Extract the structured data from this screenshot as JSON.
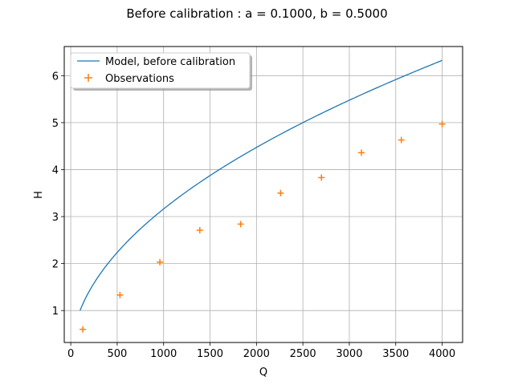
{
  "chart_data": {
    "type": "line",
    "title": "Before calibration : a = 0.1000, b = 0.5000",
    "xlabel": "Q",
    "ylabel": "H",
    "xlim": [
      -70,
      4220
    ],
    "ylim": [
      0.32,
      6.62
    ],
    "xticks": [
      0,
      500,
      1000,
      1500,
      2000,
      2500,
      3000,
      3500,
      4000
    ],
    "yticks": [
      1,
      2,
      3,
      4,
      5,
      6
    ],
    "grid": true,
    "legend": {
      "placement": "top-left"
    },
    "series": [
      {
        "name": "Model, before calibration",
        "kind": "line",
        "color": "#1f77b4",
        "formula": "H = 0.1 * Q^0.5",
        "a": 0.1,
        "b": 0.5,
        "x_range": [
          100,
          4000
        ]
      },
      {
        "name": "Observations",
        "kind": "scatter",
        "marker": "plus",
        "color": "#ff7f0e",
        "x": [
          130,
          530,
          960,
          1390,
          1830,
          2260,
          2700,
          3130,
          3560,
          4000
        ],
        "y": [
          0.6,
          1.33,
          2.03,
          2.71,
          2.84,
          3.5,
          3.83,
          4.36,
          4.63,
          4.97
        ]
      }
    ]
  }
}
